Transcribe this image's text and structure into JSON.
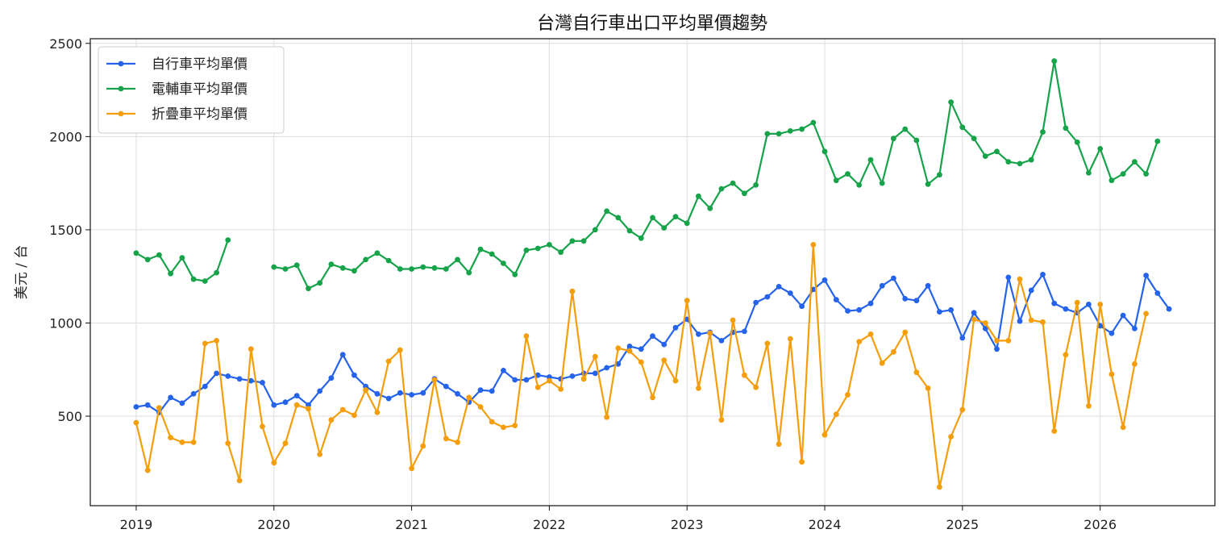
{
  "chart_data": {
    "type": "line",
    "title": "台灣自行車出口平均單價趨勢",
    "xlabel": "",
    "ylabel": "美元 / 台",
    "x_start": "2019-01",
    "x_step": "month",
    "xticks": [
      "2019",
      "2020",
      "2021",
      "2022",
      "2023",
      "2024",
      "2025",
      "2026"
    ],
    "yticks": [
      500,
      1000,
      1500,
      2000,
      2500
    ],
    "xlim": [
      "2018-09",
      "2026-11"
    ],
    "ylim": [
      20,
      2525
    ],
    "grid": true,
    "legend_position": "top-left",
    "series": [
      {
        "name": "自行車平均單價",
        "color": "#2563eb",
        "values": [
          550,
          560,
          520,
          600,
          570,
          620,
          660,
          730,
          715,
          700,
          690,
          680,
          560,
          575,
          610,
          560,
          635,
          705,
          830,
          720,
          660,
          620,
          595,
          625,
          615,
          625,
          700,
          660,
          620,
          575,
          640,
          635,
          745,
          695,
          695,
          720,
          710,
          700,
          715,
          730,
          730,
          760,
          780,
          875,
          860,
          930,
          885,
          975,
          1020,
          940,
          950,
          905,
          950,
          955,
          1110,
          1140,
          1195,
          1160,
          1090,
          1180,
          1230,
          1125,
          1065,
          1070,
          1105,
          1200,
          1240,
          1130,
          1120,
          1200,
          1060,
          1070,
          920,
          1055,
          970,
          860,
          1245,
          1010,
          1175,
          1260,
          1105,
          1075,
          1055,
          1100,
          985,
          945,
          1040,
          970,
          1255,
          1160,
          1075
        ]
      },
      {
        "name": "電輔車平均單價",
        "color": "#16a34a",
        "values": [
          1375,
          1340,
          1365,
          1265,
          1350,
          1235,
          1225,
          1270,
          1445,
          null,
          null,
          null,
          1300,
          1290,
          1310,
          1185,
          1215,
          1315,
          1295,
          1280,
          1340,
          1375,
          1335,
          1290,
          1290,
          1300,
          1295,
          1290,
          1340,
          1270,
          1395,
          1370,
          1320,
          1260,
          1390,
          1400,
          1420,
          1380,
          1440,
          1440,
          1500,
          1600,
          1565,
          1495,
          1455,
          1565,
          1510,
          1570,
          1535,
          1680,
          1615,
          1720,
          1750,
          1695,
          1740,
          2015,
          2015,
          2030,
          2040,
          2075,
          1920,
          1765,
          1800,
          1740,
          1875,
          1750,
          1990,
          2040,
          1980,
          1745,
          1795,
          2185,
          2050,
          1990,
          1895,
          1920,
          1865,
          1855,
          1875,
          2025,
          2405,
          2045,
          1970,
          1805,
          1935,
          1765,
          1800,
          1865,
          1800,
          1975
        ]
      },
      {
        "name": "折疊車平均單價",
        "color": "#f59e0b",
        "values": [
          465,
          210,
          545,
          385,
          360,
          360,
          890,
          905,
          355,
          155,
          860,
          445,
          250,
          355,
          560,
          540,
          295,
          480,
          535,
          505,
          640,
          520,
          795,
          855,
          220,
          340,
          695,
          380,
          360,
          600,
          550,
          470,
          440,
          450,
          930,
          655,
          690,
          645,
          1170,
          700,
          820,
          495,
          865,
          850,
          790,
          600,
          800,
          690,
          1120,
          650,
          945,
          480,
          1015,
          720,
          655,
          890,
          350,
          915,
          255,
          1420,
          400,
          510,
          615,
          900,
          940,
          785,
          845,
          950,
          735,
          650,
          120,
          390,
          535,
          1020,
          1000,
          905,
          905,
          1235,
          1015,
          1005,
          420,
          830,
          1110,
          555,
          1100,
          725,
          440,
          780,
          1050
        ]
      }
    ]
  }
}
